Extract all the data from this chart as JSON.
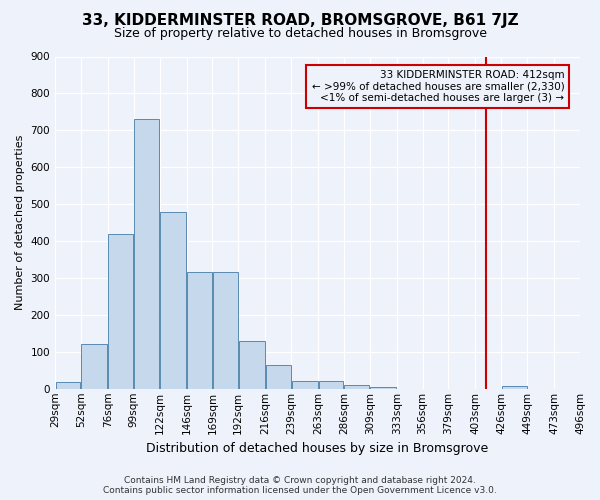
{
  "title": "33, KIDDERMINSTER ROAD, BROMSGROVE, B61 7JZ",
  "subtitle": "Size of property relative to detached houses in Bromsgrove",
  "xlabel": "Distribution of detached houses by size in Bromsgrove",
  "ylabel": "Number of detached properties",
  "bar_color": "#c6d9ec",
  "bar_edge_color": "#5a8ab0",
  "bin_edges": [
    29,
    52,
    76,
    99,
    122,
    146,
    169,
    192,
    216,
    239,
    263,
    286,
    309,
    333,
    356,
    379,
    403,
    426,
    449,
    473,
    496
  ],
  "bin_labels": [
    "29sqm",
    "52sqm",
    "76sqm",
    "99sqm",
    "122sqm",
    "146sqm",
    "169sqm",
    "192sqm",
    "216sqm",
    "239sqm",
    "263sqm",
    "286sqm",
    "309sqm",
    "333sqm",
    "356sqm",
    "379sqm",
    "403sqm",
    "426sqm",
    "449sqm",
    "473sqm",
    "496sqm"
  ],
  "counts": [
    18,
    120,
    420,
    730,
    480,
    315,
    315,
    130,
    65,
    22,
    20,
    10,
    5,
    0,
    0,
    0,
    0,
    8,
    0,
    0
  ],
  "property_line_x": 412,
  "property_line_color": "#cc0000",
  "annotation_line1": "33 KIDDERMINSTER ROAD: 412sqm",
  "annotation_line2": "← >99% of detached houses are smaller (2,330)",
  "annotation_line3": "<1% of semi-detached houses are larger (3) →",
  "annotation_box_color": "#cc0000",
  "annotation_bg": "#eef2fa",
  "ylim": [
    0,
    900
  ],
  "yticks": [
    0,
    100,
    200,
    300,
    400,
    500,
    600,
    700,
    800,
    900
  ],
  "footer_line1": "Contains HM Land Registry data © Crown copyright and database right 2024.",
  "footer_line2": "Contains public sector information licensed under the Open Government Licence v3.0.",
  "background_color": "#eef2fa",
  "grid_color": "#ffffff",
  "title_fontsize": 11,
  "subtitle_fontsize": 9,
  "ylabel_fontsize": 8,
  "xlabel_fontsize": 9,
  "tick_fontsize": 7.5,
  "footer_fontsize": 6.5
}
